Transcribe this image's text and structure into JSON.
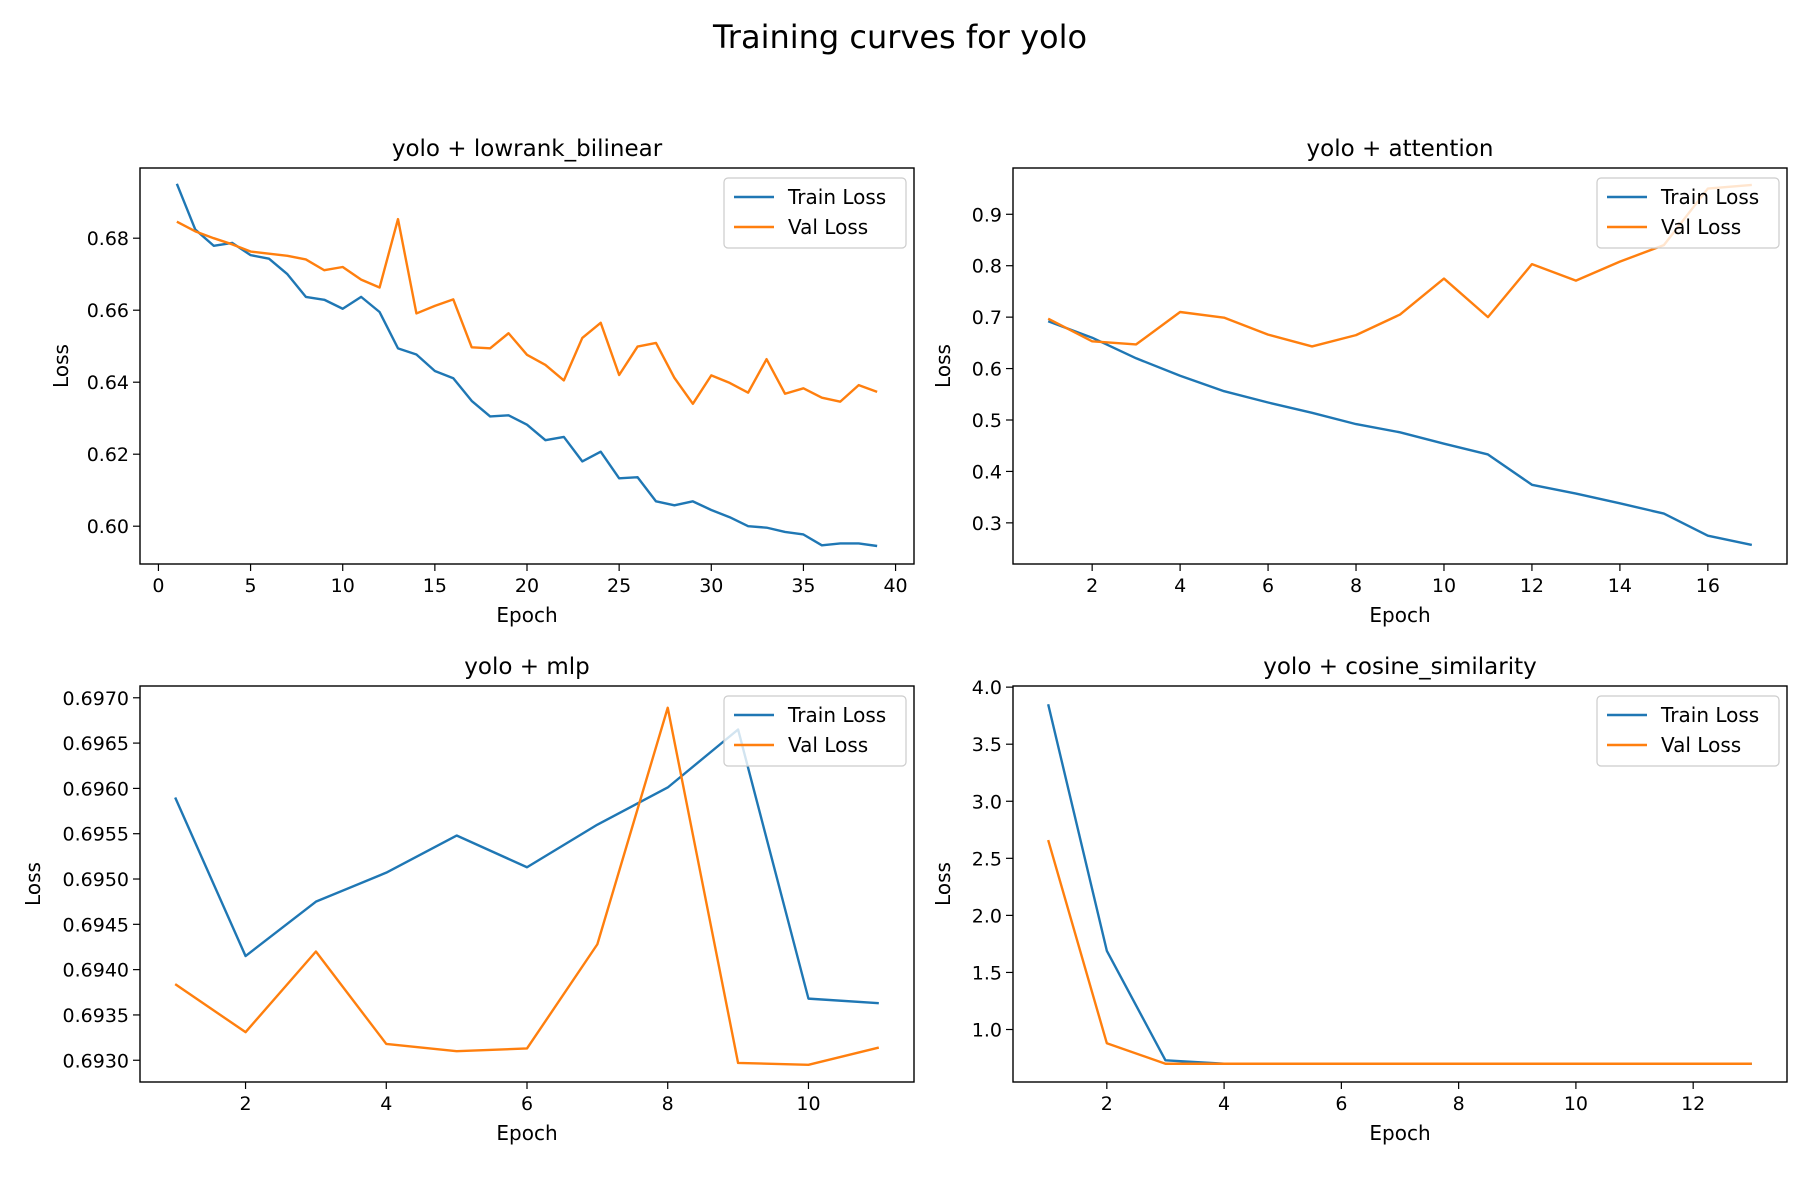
{
  "figure": {
    "title": "Training curves for yolo",
    "colors": {
      "train": "#1f77b4",
      "val": "#ff7f0e",
      "axis": "#000000",
      "legend_border": "#cccccc"
    }
  },
  "chart_data": [
    {
      "type": "line",
      "title": "yolo + lowrank_bilinear",
      "xlabel": "Epoch",
      "ylabel": "Loss",
      "xlim": [
        -1,
        41
      ],
      "ylim": [
        0.5895,
        0.6995
      ],
      "xticks": [
        0,
        5,
        10,
        15,
        20,
        25,
        30,
        35,
        40
      ],
      "yticks": [
        0.6,
        0.62,
        0.64,
        0.66,
        0.68
      ],
      "ytick_labels": [
        "0.60",
        "0.62",
        "0.64",
        "0.66",
        "0.68"
      ],
      "legend": "upper right",
      "grid": false,
      "x": [
        1,
        2,
        3,
        4,
        5,
        6,
        7,
        8,
        9,
        10,
        11,
        12,
        13,
        14,
        15,
        16,
        17,
        18,
        19,
        20,
        21,
        22,
        23,
        24,
        25,
        26,
        27,
        28,
        29,
        30,
        31,
        32,
        33,
        34,
        35,
        36,
        37,
        38,
        39
      ],
      "series": [
        {
          "name": "Train Loss",
          "color": "#1f77b4",
          "values": [
            0.6951,
            0.6824,
            0.6779,
            0.6787,
            0.6753,
            0.6743,
            0.67,
            0.6637,
            0.6629,
            0.6604,
            0.6637,
            0.6595,
            0.6494,
            0.6477,
            0.6431,
            0.6411,
            0.6348,
            0.6305,
            0.6308,
            0.6282,
            0.6239,
            0.6248,
            0.618,
            0.6207,
            0.6133,
            0.6136,
            0.6069,
            0.6058,
            0.6069,
            0.6045,
            0.6025,
            0.6,
            0.5996,
            0.5984,
            0.5977,
            0.5947,
            0.5952,
            0.5952,
            0.5945
          ]
        },
        {
          "name": "Val Loss",
          "color": "#ff7f0e",
          "values": [
            0.6846,
            0.6819,
            0.68,
            0.6783,
            0.6763,
            0.6757,
            0.6751,
            0.6741,
            0.6711,
            0.672,
            0.6685,
            0.6663,
            0.6853,
            0.6591,
            0.6612,
            0.663,
            0.6497,
            0.6494,
            0.6536,
            0.6476,
            0.6448,
            0.6405,
            0.6523,
            0.6565,
            0.642,
            0.6499,
            0.6509,
            0.6412,
            0.634,
            0.6419,
            0.6398,
            0.6371,
            0.6464,
            0.6368,
            0.6383,
            0.6357,
            0.6346,
            0.6392,
            0.6373
          ]
        }
      ]
    },
    {
      "type": "line",
      "title": "yolo + attention",
      "xlabel": "Epoch",
      "ylabel": "Loss",
      "xlim": [
        0.2,
        17.8
      ],
      "ylim": [
        0.22,
        0.99
      ],
      "xticks": [
        2,
        4,
        6,
        8,
        10,
        12,
        14,
        16
      ],
      "yticks": [
        0.3,
        0.4,
        0.5,
        0.6,
        0.7,
        0.8,
        0.9
      ],
      "ytick_labels": [
        "0.3",
        "0.4",
        "0.5",
        "0.6",
        "0.7",
        "0.8",
        "0.9"
      ],
      "legend": "upper right",
      "grid": false,
      "x": [
        1,
        2,
        3,
        4,
        5,
        6,
        7,
        8,
        9,
        10,
        11,
        12,
        13,
        14,
        15,
        16,
        17
      ],
      "series": [
        {
          "name": "Train Loss",
          "color": "#1f77b4",
          "values": [
            0.692,
            0.66,
            0.62,
            0.586,
            0.556,
            0.534,
            0.514,
            0.492,
            0.476,
            0.454,
            0.433,
            0.374,
            0.357,
            0.338,
            0.318,
            0.275,
            0.257
          ]
        },
        {
          "name": "Val Loss",
          "color": "#ff7f0e",
          "values": [
            0.697,
            0.653,
            0.647,
            0.71,
            0.699,
            0.666,
            0.643,
            0.665,
            0.705,
            0.775,
            0.7,
            0.803,
            0.771,
            0.808,
            0.84,
            0.95,
            0.957
          ]
        }
      ]
    },
    {
      "type": "line",
      "title": "yolo + mlp",
      "xlabel": "Epoch",
      "ylabel": "Loss",
      "xlim": [
        0.5,
        11.5
      ],
      "ylim": [
        0.69276,
        0.69713
      ],
      "xticks": [
        2,
        4,
        6,
        8,
        10
      ],
      "yticks": [
        0.693,
        0.6935,
        0.694,
        0.6945,
        0.695,
        0.6955,
        0.696,
        0.6965,
        0.697
      ],
      "ytick_labels": [
        "0.6930",
        "0.6935",
        "0.6940",
        "0.6945",
        "0.6950",
        "0.6955",
        "0.6960",
        "0.6965",
        "0.6970"
      ],
      "legend": "upper right",
      "grid": false,
      "x": [
        1,
        2,
        3,
        4,
        5,
        6,
        7,
        8,
        9,
        10,
        11
      ],
      "series": [
        {
          "name": "Train Loss",
          "color": "#1f77b4",
          "values": [
            0.6959,
            0.69415,
            0.69475,
            0.69507,
            0.69548,
            0.69513,
            0.6956,
            0.69601,
            0.69665,
            0.69368,
            0.69363
          ]
        },
        {
          "name": "Val Loss",
          "color": "#ff7f0e",
          "values": [
            0.69384,
            0.69331,
            0.6942,
            0.69318,
            0.6931,
            0.69313,
            0.69428,
            0.69689,
            0.69297,
            0.69295,
            0.69314
          ]
        }
      ]
    },
    {
      "type": "line",
      "title": "yolo + cosine_similarity",
      "xlabel": "Epoch",
      "ylabel": "Loss",
      "xlim": [
        0.4,
        13.6
      ],
      "ylim": [
        0.54,
        4.01
      ],
      "xticks": [
        2,
        4,
        6,
        8,
        10,
        12
      ],
      "yticks": [
        1.0,
        1.5,
        2.0,
        2.5,
        3.0,
        3.5,
        4.0
      ],
      "ytick_labels": [
        "1.0",
        "1.5",
        "2.0",
        "2.5",
        "3.0",
        "3.5",
        "4.0"
      ],
      "legend": "upper right",
      "grid": false,
      "x": [
        1,
        2,
        3,
        4,
        5,
        6,
        7,
        8,
        9,
        10,
        11,
        12,
        13
      ],
      "series": [
        {
          "name": "Train Loss",
          "color": "#1f77b4",
          "values": [
            3.85,
            1.69,
            0.73,
            0.7,
            0.7,
            0.7,
            0.7,
            0.7,
            0.7,
            0.7,
            0.7,
            0.7,
            0.7
          ]
        },
        {
          "name": "Val Loss",
          "color": "#ff7f0e",
          "values": [
            2.66,
            0.88,
            0.7,
            0.7,
            0.7,
            0.7,
            0.7,
            0.7,
            0.7,
            0.7,
            0.7,
            0.7,
            0.7
          ]
        }
      ]
    }
  ]
}
